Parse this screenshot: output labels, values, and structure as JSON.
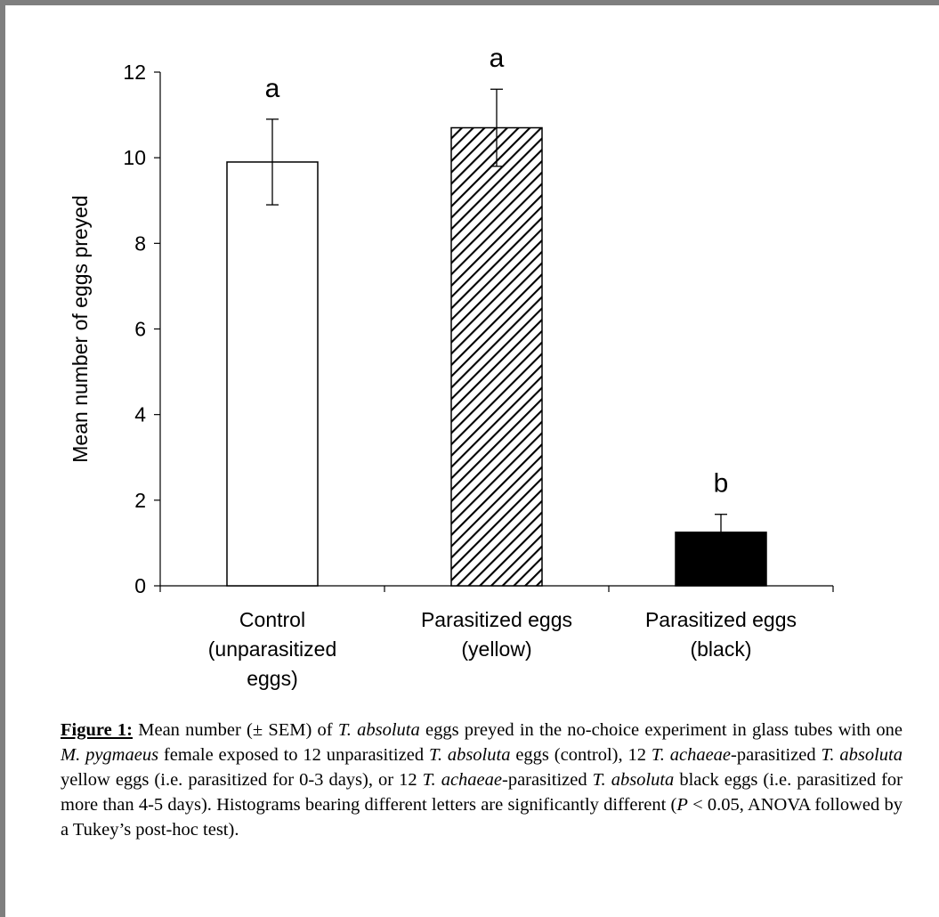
{
  "chart_data": {
    "type": "bar",
    "categories": [
      [
        "Control",
        "(unparasitized",
        "eggs)"
      ],
      [
        "Parasitized eggs",
        "(yellow)"
      ],
      [
        "Parasitized eggs",
        "(black)"
      ]
    ],
    "values": [
      9.9,
      10.7,
      1.25
    ],
    "errors": [
      1.0,
      0.9,
      0.42
    ],
    "significance_letters": [
      "a",
      "a",
      "b"
    ],
    "fills": [
      "white",
      "hatched",
      "black"
    ],
    "ylabel": "Mean number of eggs preyed",
    "ylim": [
      0,
      12
    ],
    "yticks": [
      0,
      2,
      4,
      6,
      8,
      10,
      12
    ],
    "grid": false,
    "legend": "none"
  },
  "caption": {
    "label": "Figure 1:",
    "segments": [
      {
        "t": " Mean number (± SEM) of ",
        "i": false
      },
      {
        "t": "T. absoluta",
        "i": true
      },
      {
        "t": " eggs preyed in the no-choice experiment in glass tubes with one ",
        "i": false
      },
      {
        "t": "M. pygmaeus",
        "i": true
      },
      {
        "t": " female exposed to 12 unparasitized ",
        "i": false
      },
      {
        "t": "T. absoluta",
        "i": true
      },
      {
        "t": " eggs (control), 12 ",
        "i": false
      },
      {
        "t": "T. achaeae",
        "i": true
      },
      {
        "t": "-parasitized ",
        "i": false
      },
      {
        "t": "T. absoluta",
        "i": true
      },
      {
        "t": " yellow eggs (i.e. parasitized for 0-3 days), or 12 ",
        "i": false
      },
      {
        "t": "T. achaeae",
        "i": true
      },
      {
        "t": "-parasitized ",
        "i": false
      },
      {
        "t": "T. absoluta",
        "i": true
      },
      {
        "t": " black eggs (i.e. parasitized for more than 4-5 days). Histograms bearing different letters are significantly different (",
        "i": false
      },
      {
        "t": "P",
        "i": true
      },
      {
        "t": " < 0.05, ANOVA followed by a Tukey’s post-hoc test).",
        "i": false
      }
    ]
  }
}
